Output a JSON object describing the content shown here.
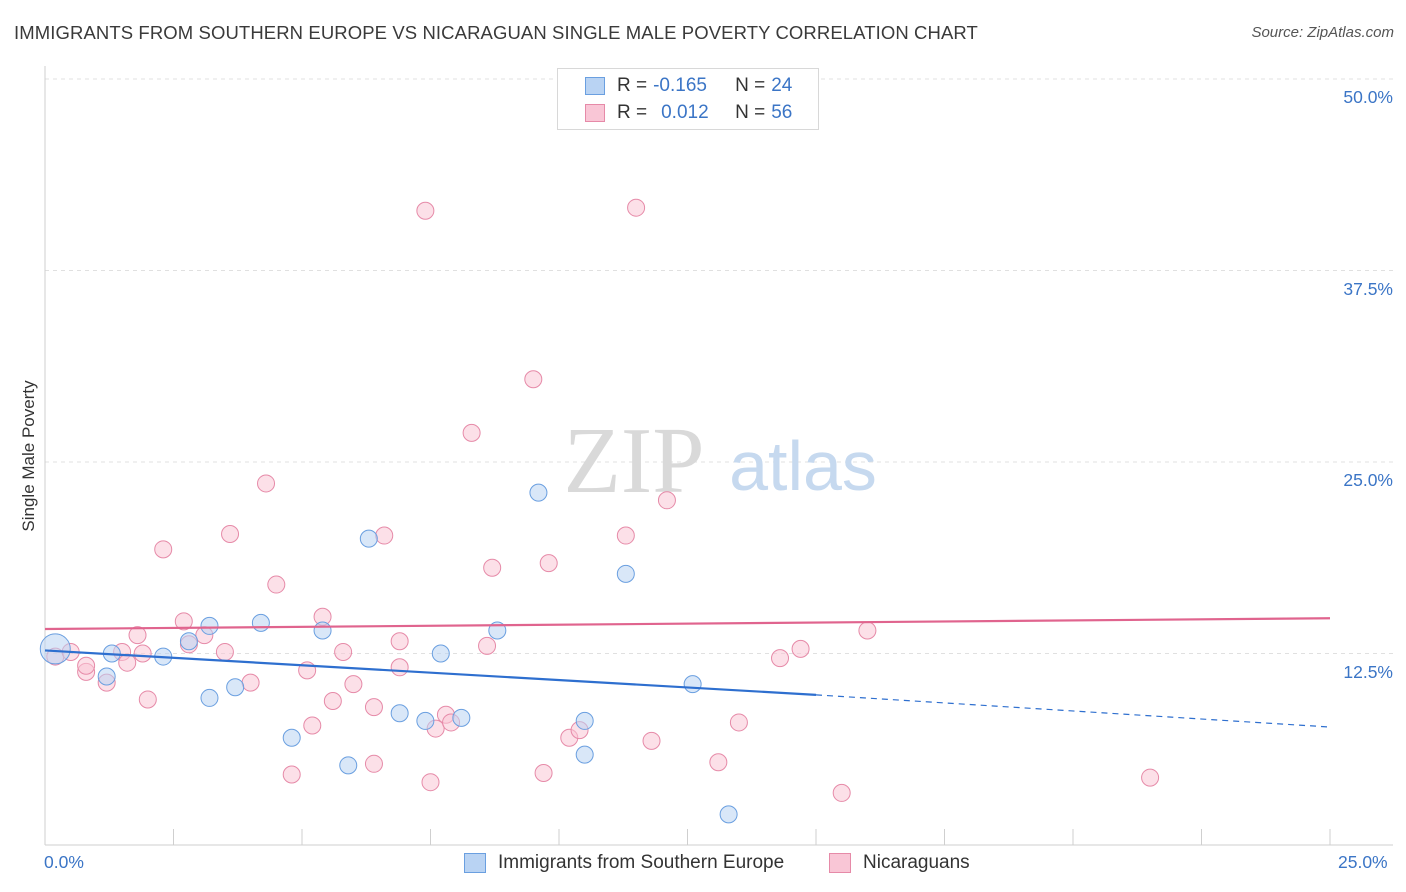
{
  "header": {
    "title": "IMMIGRANTS FROM SOUTHERN EUROPE VS NICARAGUAN SINGLE MALE POVERTY CORRELATION CHART",
    "source": "Source: ZipAtlas.com"
  },
  "watermark": {
    "zip": "ZIP",
    "atlas": "atlas"
  },
  "legend": {
    "rows": [
      {
        "r_label": "R =",
        "r_value": "-0.165",
        "n_label": "N =",
        "n_value": "24",
        "color": "#a9c8f0",
        "border": "#6a9fe0"
      },
      {
        "r_label": "R =",
        "r_value": "0.012",
        "n_label": "N =",
        "n_value": "56",
        "color": "#f8bfd0",
        "border": "#e68aa8"
      }
    ]
  },
  "bottom_legend": {
    "series1": "Immigrants from Southern Europe",
    "series2": "Nicaraguans"
  },
  "chart_data": {
    "type": "scatter",
    "title": "IMMIGRANTS FROM SOUTHERN EUROPE VS NICARAGUAN SINGLE MALE POVERTY CORRELATION CHART",
    "xlabel": "",
    "ylabel": "Single Male Poverty",
    "xlim": [
      0,
      25
    ],
    "ylim": [
      0,
      50
    ],
    "x_tick_labels": [
      "0.0%",
      "25.0%"
    ],
    "y_tick_labels": [
      "12.5%",
      "25.0%",
      "37.5%",
      "50.0%"
    ],
    "y_tick_values": [
      12.5,
      25.0,
      37.5,
      50.0
    ],
    "grid": true,
    "series": [
      {
        "name": "Immigrants from Southern Europe",
        "color": "#6a9fe0",
        "fill": "#b9d3f3",
        "r": -0.165,
        "n": 24,
        "points": [
          [
            0.2,
            12.8
          ],
          [
            1.3,
            12.5
          ],
          [
            1.2,
            11.0
          ],
          [
            2.3,
            12.3
          ],
          [
            2.8,
            13.3
          ],
          [
            3.2,
            14.3
          ],
          [
            3.2,
            9.6
          ],
          [
            3.7,
            10.3
          ],
          [
            4.2,
            14.5
          ],
          [
            4.8,
            7.0
          ],
          [
            5.4,
            14.0
          ],
          [
            5.9,
            5.2
          ],
          [
            6.3,
            20.0
          ],
          [
            6.9,
            8.6
          ],
          [
            7.4,
            8.1
          ],
          [
            7.7,
            12.5
          ],
          [
            8.1,
            8.3
          ],
          [
            8.8,
            14.0
          ],
          [
            9.6,
            23.0
          ],
          [
            10.5,
            5.9
          ],
          [
            10.5,
            8.1
          ],
          [
            11.3,
            17.7
          ],
          [
            12.6,
            10.5
          ],
          [
            13.3,
            2.0
          ]
        ],
        "trend": {
          "x_start": 0,
          "y_start": 12.7,
          "x_solid_end": 15,
          "y_solid_end": 9.8,
          "x_end": 25,
          "y_end": 7.7
        }
      },
      {
        "name": "Nicaraguans",
        "color": "#e68aa8",
        "fill": "#f9c6d6",
        "r": 0.012,
        "n": 56,
        "points": [
          [
            0.2,
            12.3
          ],
          [
            0.5,
            12.6
          ],
          [
            0.8,
            11.3
          ],
          [
            0.8,
            11.7
          ],
          [
            1.2,
            10.6
          ],
          [
            1.5,
            12.6
          ],
          [
            1.6,
            11.9
          ],
          [
            1.8,
            13.7
          ],
          [
            1.9,
            12.5
          ],
          [
            2.0,
            9.5
          ],
          [
            2.3,
            19.3
          ],
          [
            2.7,
            14.6
          ],
          [
            2.8,
            13.1
          ],
          [
            3.1,
            13.7
          ],
          [
            3.5,
            12.6
          ],
          [
            3.6,
            20.3
          ],
          [
            4.0,
            10.6
          ],
          [
            4.3,
            23.6
          ],
          [
            4.5,
            17.0
          ],
          [
            4.8,
            4.6
          ],
          [
            5.1,
            11.4
          ],
          [
            5.2,
            7.8
          ],
          [
            5.4,
            14.9
          ],
          [
            5.6,
            9.4
          ],
          [
            5.8,
            12.6
          ],
          [
            6.0,
            10.5
          ],
          [
            6.4,
            9.0
          ],
          [
            6.4,
            5.3
          ],
          [
            6.6,
            20.2
          ],
          [
            6.9,
            11.6
          ],
          [
            6.9,
            13.3
          ],
          [
            7.4,
            41.4
          ],
          [
            7.5,
            4.1
          ],
          [
            7.6,
            7.6
          ],
          [
            7.8,
            8.5
          ],
          [
            7.9,
            8.0
          ],
          [
            8.3,
            26.9
          ],
          [
            8.6,
            13.0
          ],
          [
            8.7,
            18.1
          ],
          [
            9.5,
            30.4
          ],
          [
            9.7,
            4.7
          ],
          [
            9.8,
            18.4
          ],
          [
            10.2,
            7.0
          ],
          [
            10.4,
            7.5
          ],
          [
            10.7,
            48.0
          ],
          [
            11.3,
            20.2
          ],
          [
            11.5,
            41.6
          ],
          [
            11.8,
            6.8
          ],
          [
            12.1,
            22.5
          ],
          [
            13.1,
            5.4
          ],
          [
            13.5,
            8.0
          ],
          [
            14.3,
            12.2
          ],
          [
            14.7,
            12.8
          ],
          [
            15.5,
            3.4
          ],
          [
            21.5,
            4.4
          ],
          [
            16.0,
            14.0
          ]
        ],
        "trend": {
          "x_start": 0,
          "y_start": 14.1,
          "x_end": 25,
          "y_end": 14.8
        }
      }
    ]
  }
}
